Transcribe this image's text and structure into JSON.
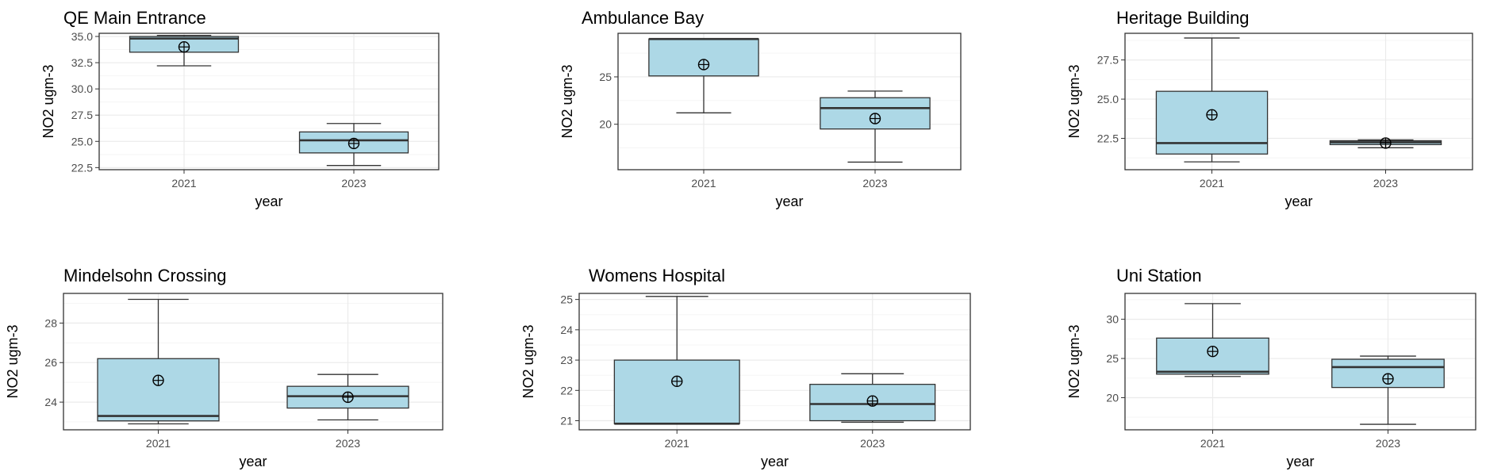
{
  "chart_data": [
    {
      "type": "box",
      "title": "QE Main Entrance",
      "xlabel": "year",
      "ylabel": "NO2 ugm-3",
      "categories": [
        "2021",
        "2023"
      ],
      "ylim": [
        22.3,
        35.3
      ],
      "yticks": [
        "22.5",
        "25.0",
        "27.5",
        "30.0",
        "32.5",
        "35.0"
      ],
      "boxes": [
        {
          "whisker_low": 32.2,
          "q1": 33.5,
          "median": 34.8,
          "q3": 35.0,
          "whisker_high": 35.1,
          "mean": 34.0
        },
        {
          "whisker_low": 22.7,
          "q1": 23.9,
          "median": 25.1,
          "q3": 25.9,
          "whisker_high": 26.7,
          "mean": 24.8
        }
      ]
    },
    {
      "type": "box",
      "title": "Ambulance Bay",
      "xlabel": "year",
      "ylabel": "NO2 ugm-3",
      "categories": [
        "2021",
        "2023"
      ],
      "ylim": [
        15.2,
        29.6
      ],
      "yticks": [
        "20",
        "25"
      ],
      "boxes": [
        {
          "whisker_low": 21.2,
          "q1": 25.1,
          "median": 29.0,
          "q3": 29.0,
          "whisker_high": 29.0,
          "mean": 26.3
        },
        {
          "whisker_low": 16.0,
          "q1": 19.5,
          "median": 21.7,
          "q3": 22.8,
          "whisker_high": 23.5,
          "mean": 20.6
        }
      ]
    },
    {
      "type": "box",
      "title": "Heritage Building",
      "xlabel": "year",
      "ylabel": "NO2 ugm-3",
      "categories": [
        "2021",
        "2023"
      ],
      "ylim": [
        20.5,
        29.2
      ],
      "yticks": [
        "22.5",
        "25.0",
        "27.5"
      ],
      "boxes": [
        {
          "whisker_low": 21.0,
          "q1": 21.5,
          "median": 22.2,
          "q3": 25.5,
          "whisker_high": 28.9,
          "mean": 24.0
        },
        {
          "whisker_low": 21.9,
          "q1": 22.1,
          "median": 22.25,
          "q3": 22.35,
          "whisker_high": 22.4,
          "mean": 22.2
        }
      ]
    },
    {
      "type": "box",
      "title": "Mindelsohn Crossing",
      "xlabel": "year",
      "ylabel": "NO2 ugm-3",
      "categories": [
        "2021",
        "2023"
      ],
      "ylim": [
        22.6,
        29.5
      ],
      "yticks": [
        "24",
        "26",
        "28"
      ],
      "boxes": [
        {
          "whisker_low": 22.9,
          "q1": 23.05,
          "median": 23.3,
          "q3": 26.2,
          "whisker_high": 29.2,
          "mean": 25.1
        },
        {
          "whisker_low": 23.1,
          "q1": 23.7,
          "median": 24.3,
          "q3": 24.8,
          "whisker_high": 25.4,
          "mean": 24.25
        }
      ]
    },
    {
      "type": "box",
      "title": "Womens Hospital",
      "xlabel": "year",
      "ylabel": "NO2 ugm-3",
      "categories": [
        "2021",
        "2023"
      ],
      "ylim": [
        20.7,
        25.2
      ],
      "yticks": [
        "21",
        "22",
        "23",
        "24",
        "25"
      ],
      "boxes": [
        {
          "whisker_low": 20.9,
          "q1": 20.9,
          "median": 20.9,
          "q3": 23.0,
          "whisker_high": 25.1,
          "mean": 22.3
        },
        {
          "whisker_low": 20.95,
          "q1": 21.0,
          "median": 21.55,
          "q3": 22.2,
          "whisker_high": 22.55,
          "mean": 21.65
        }
      ]
    },
    {
      "type": "box",
      "title": "Uni Station",
      "xlabel": "year",
      "ylabel": "NO2 ugm-3",
      "categories": [
        "2021",
        "2023"
      ],
      "ylim": [
        15.9,
        33.3
      ],
      "yticks": [
        "20",
        "25",
        "30"
      ],
      "boxes": [
        {
          "whisker_low": 22.7,
          "q1": 23.0,
          "median": 23.3,
          "q3": 27.6,
          "whisker_high": 32.0,
          "mean": 25.9
        },
        {
          "whisker_low": 16.6,
          "q1": 21.3,
          "median": 23.9,
          "q3": 24.9,
          "whisker_high": 25.3,
          "mean": 22.4
        }
      ]
    }
  ],
  "colors": {
    "box_fill": "#add8e6",
    "line": "#333333",
    "grid_major": "#ebebeb",
    "grid_minor": "#f5f5f5",
    "text": "#000000",
    "tick_text": "#4d4d4d"
  }
}
